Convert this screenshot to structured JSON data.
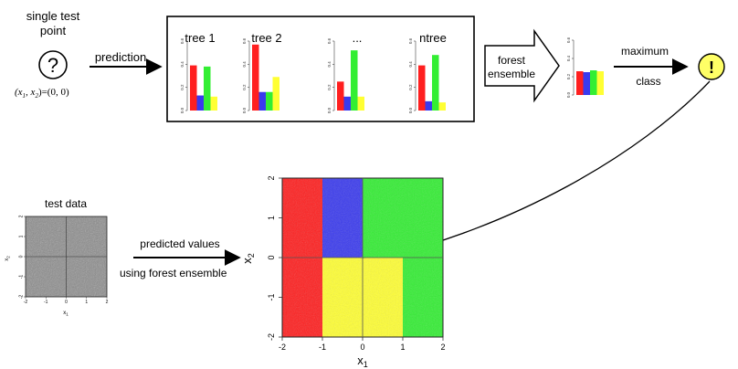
{
  "colors": {
    "red": "#ff1f1f",
    "green": "#33ee33",
    "blue": "#3a3aee",
    "yellow": "#ffff33",
    "light_yellow": "#ffff66",
    "grey_field": "#8a8a8a"
  },
  "icons": {
    "question": "question-mark-circle-icon",
    "exclamation": "exclamation-circle-icon"
  },
  "single_point": {
    "title_line1": "single test",
    "title_line2": "point",
    "symbol": "?",
    "coord_lhs": "(x",
    "coord_sub1": "1",
    "coord_comma": ", x",
    "coord_sub2": "2",
    "coord_rhs": ")=(0, 0)"
  },
  "arrows": {
    "prediction": "prediction",
    "forest_line1": "forest",
    "forest_line2": "ensemble",
    "maximum_line1": "maximum",
    "maximum_line2": "class",
    "predicted_line1": "predicted values",
    "predicted_line2": "using forest ensemble"
  },
  "trees": {
    "tick_labels": [
      "0.0",
      "0.2",
      "0.4",
      "0.6"
    ],
    "items": [
      {
        "label": "tree 1",
        "values": [
          0.39,
          0.13,
          0.38,
          0.12
        ]
      },
      {
        "label": "tree 2",
        "values": [
          0.57,
          0.16,
          0.16,
          0.29
        ]
      },
      {
        "label": "...",
        "values": [
          0.25,
          0.12,
          0.52,
          0.12
        ]
      },
      {
        "label": "ntree",
        "values": [
          0.39,
          0.08,
          0.48,
          0.07
        ]
      }
    ],
    "ensemble": {
      "values": [
        0.26,
        0.25,
        0.27,
        0.26
      ]
    }
  },
  "result": {
    "symbol": "!"
  },
  "test_data": {
    "title": "test data",
    "x_ticks": [
      "-2",
      "-1",
      "0",
      "1",
      "2"
    ],
    "y_ticks": [
      "-2",
      "-1",
      "0",
      "1",
      "2"
    ],
    "xlabel": "x",
    "xlabel_sub": "1",
    "ylabel": "x",
    "ylabel_sub": "2"
  },
  "chart_data": {
    "type": "heatmap",
    "xlim": [
      -2,
      2
    ],
    "ylim": [
      -2,
      2
    ],
    "x_ticks": [
      "-2",
      "-1",
      "0",
      "1",
      "2"
    ],
    "y_ticks": [
      "-2",
      "-1",
      "0",
      "1",
      "2"
    ],
    "xlabel": "x",
    "xlabel_sub": "1",
    "ylabel": "x",
    "ylabel_sub": "2",
    "regions": [
      {
        "class": "red",
        "color": "#ff1f1f",
        "x": [
          -2,
          0
        ],
        "y": [
          -2,
          2
        ]
      },
      {
        "class": "blue",
        "color": "#3a3aee",
        "x": [
          -1,
          1
        ],
        "y": [
          0,
          2
        ]
      },
      {
        "class": "green",
        "color": "#33ee33",
        "x": [
          0,
          2
        ],
        "y": [
          -2,
          2
        ]
      },
      {
        "class": "yellow",
        "color": "#ffff33",
        "x": [
          -1,
          1
        ],
        "y": [
          -2,
          0
        ]
      }
    ],
    "reference_lines": {
      "x": 0,
      "y": 0
    },
    "highlight_point": [
      0,
      0
    ]
  }
}
